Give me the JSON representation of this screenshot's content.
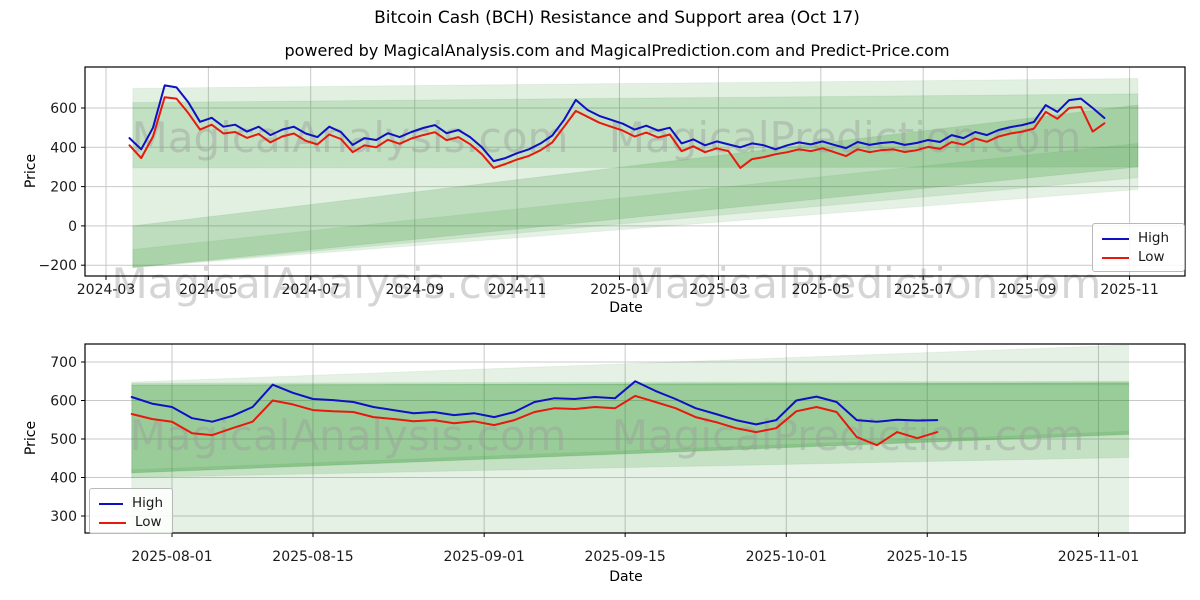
{
  "title": "Bitcoin Cash (BCH) Resistance and Support area (Oct 17)",
  "subtitle": "powered by MagicalAnalysis.com and MagicalPrediction.com and Predict-Price.com",
  "watermarks": [
    "MagicalAnalysis.com",
    "MagicalPrediction.com"
  ],
  "colors": {
    "high": "#0f0fc4",
    "low": "#e8190c",
    "band_green": "#1e8c1e",
    "grid": "#c9c9c9",
    "frame": "#000000",
    "watermark": "#9b9b9b"
  },
  "chart_data": [
    {
      "type": "line",
      "xlabel": "Date",
      "ylabel": "Price",
      "grid": true,
      "legend_position": "lower right",
      "x_origin": "2024-03-01",
      "x_ticks": [
        {
          "label": "2024-03",
          "day": 0
        },
        {
          "label": "2024-05",
          "day": 61
        },
        {
          "label": "2024-07",
          "day": 122
        },
        {
          "label": "2024-09",
          "day": 184
        },
        {
          "label": "2024-11",
          "day": 245
        },
        {
          "label": "2025-01",
          "day": 306
        },
        {
          "label": "2025-03",
          "day": 365
        },
        {
          "label": "2025-05",
          "day": 426
        },
        {
          "label": "2025-07",
          "day": 487
        },
        {
          "label": "2025-09",
          "day": 549
        },
        {
          "label": "2025-11",
          "day": 610
        }
      ],
      "y_ticks": [
        {
          "label": "600",
          "value": 600
        },
        {
          "label": "400",
          "value": 400
        },
        {
          "label": "200",
          "value": 200
        },
        {
          "label": "0",
          "value": 0
        },
        {
          "label": "−200",
          "value": -200
        }
      ],
      "ylim": [
        -260,
        810
      ],
      "series_start_day": 14,
      "series_step_days": 7,
      "series": [
        {
          "name": "High",
          "color": "#0f0fc4",
          "values": [
            447,
            390,
            500,
            715,
            705,
            630,
            530,
            550,
            505,
            515,
            480,
            505,
            462,
            490,
            505,
            470,
            452,
            505,
            478,
            412,
            447,
            437,
            472,
            452,
            478,
            498,
            513,
            472,
            488,
            452,
            400,
            330,
            345,
            370,
            390,
            420,
            460,
            540,
            641,
            590,
            560,
            540,
            520,
            490,
            510,
            485,
            500,
            420,
            440,
            410,
            430,
            415,
            400,
            420,
            410,
            390,
            410,
            425,
            415,
            430,
            412,
            396,
            427,
            412,
            422,
            427,
            412,
            422,
            437,
            427,
            462,
            447,
            478,
            462,
            488,
            503,
            513,
            529,
            615,
            580,
            640,
            648,
            600,
            549
          ]
        },
        {
          "name": "Low",
          "color": "#e8190c",
          "values": [
            410,
            345,
            455,
            655,
            648,
            575,
            490,
            515,
            470,
            478,
            448,
            468,
            425,
            455,
            470,
            433,
            415,
            465,
            442,
            375,
            410,
            400,
            438,
            418,
            445,
            462,
            477,
            436,
            452,
            416,
            365,
            295,
            315,
            338,
            356,
            385,
            425,
            505,
            585,
            555,
            525,
            505,
            485,
            455,
            475,
            450,
            465,
            380,
            405,
            375,
            395,
            380,
            295,
            340,
            350,
            365,
            375,
            390,
            380,
            395,
            375,
            355,
            390,
            375,
            385,
            390,
            376,
            385,
            402,
            392,
            427,
            413,
            445,
            428,
            455,
            470,
            480,
            495,
            580,
            545,
            600,
            605,
            480,
            522
          ]
        }
      ],
      "bands": [
        {
          "day0": 16,
          "day1": 615,
          "top0": 700,
          "top1": 750,
          "bot0": -212,
          "bot1": 245,
          "opacity": 0.13
        },
        {
          "day0": 16,
          "day1": 615,
          "top0": 628,
          "top1": 672,
          "bot0": 295,
          "bot1": 300,
          "opacity": 0.16
        },
        {
          "day0": 16,
          "day1": 615,
          "top0": 0,
          "top1": 615,
          "bot0": -212,
          "bot1": 300,
          "opacity": 0.18
        },
        {
          "day0": 16,
          "day1": 615,
          "top0": -120,
          "top1": 420,
          "bot0": -212,
          "bot1": 185,
          "opacity": 0.12
        }
      ]
    },
    {
      "type": "line",
      "xlabel": "Date",
      "ylabel": "Price",
      "grid": true,
      "legend_position": "lower left",
      "x_origin": "2025-08-01",
      "x_ticks": [
        {
          "label": "2025-08-01",
          "day": 0
        },
        {
          "label": "2025-08-15",
          "day": 14
        },
        {
          "label": "2025-09-01",
          "day": 31
        },
        {
          "label": "2025-09-15",
          "day": 45
        },
        {
          "label": "2025-10-01",
          "day": 61
        },
        {
          "label": "2025-10-15",
          "day": 75
        },
        {
          "label": "2025-11-01",
          "day": 92
        }
      ],
      "y_ticks": [
        {
          "label": "700",
          "value": 700
        },
        {
          "label": "600",
          "value": 600
        },
        {
          "label": "500",
          "value": 500
        },
        {
          "label": "400",
          "value": 400
        },
        {
          "label": "300",
          "value": 300
        }
      ],
      "ylim": [
        255,
        750
      ],
      "series_start_day": -4,
      "series_step_days": 2,
      "series": [
        {
          "name": "High",
          "color": "#0f0fc4",
          "values": [
            609,
            592,
            583,
            554,
            545,
            560,
            583,
            641,
            620,
            604,
            601,
            596,
            583,
            575,
            567,
            570,
            562,
            567,
            557,
            570,
            596,
            606,
            604,
            609,
            606,
            650,
            625,
            604,
            580,
            565,
            549,
            538,
            549,
            600,
            610,
            596,
            549,
            545,
            550,
            548,
            549
          ]
        },
        {
          "name": "Low",
          "color": "#e8190c",
          "values": [
            565,
            552,
            545,
            515,
            510,
            528,
            545,
            600,
            590,
            575,
            572,
            570,
            557,
            552,
            546,
            549,
            541,
            546,
            536,
            549,
            570,
            580,
            578,
            583,
            580,
            612,
            596,
            580,
            557,
            544,
            528,
            518,
            528,
            572,
            583,
            570,
            505,
            484,
            518,
            502,
            518
          ]
        }
      ],
      "bands": [
        {
          "day0": -4,
          "day1": 95,
          "top0": 648,
          "top1": 744,
          "bot0": 640,
          "bot1": 640,
          "opacity": 0.12
        },
        {
          "day0": -4,
          "day1": 95,
          "top0": 420,
          "top1": 520,
          "bot0": 256,
          "bot1": 256,
          "opacity": 0.12
        },
        {
          "day0": -4,
          "day1": 95,
          "top0": 645,
          "top1": 650,
          "bot0": 400,
          "bot1": 452,
          "opacity": 0.16
        },
        {
          "day0": -4,
          "day1": 95,
          "top0": 640,
          "top1": 646,
          "bot0": 412,
          "bot1": 512,
          "opacity": 0.34
        }
      ]
    }
  ]
}
